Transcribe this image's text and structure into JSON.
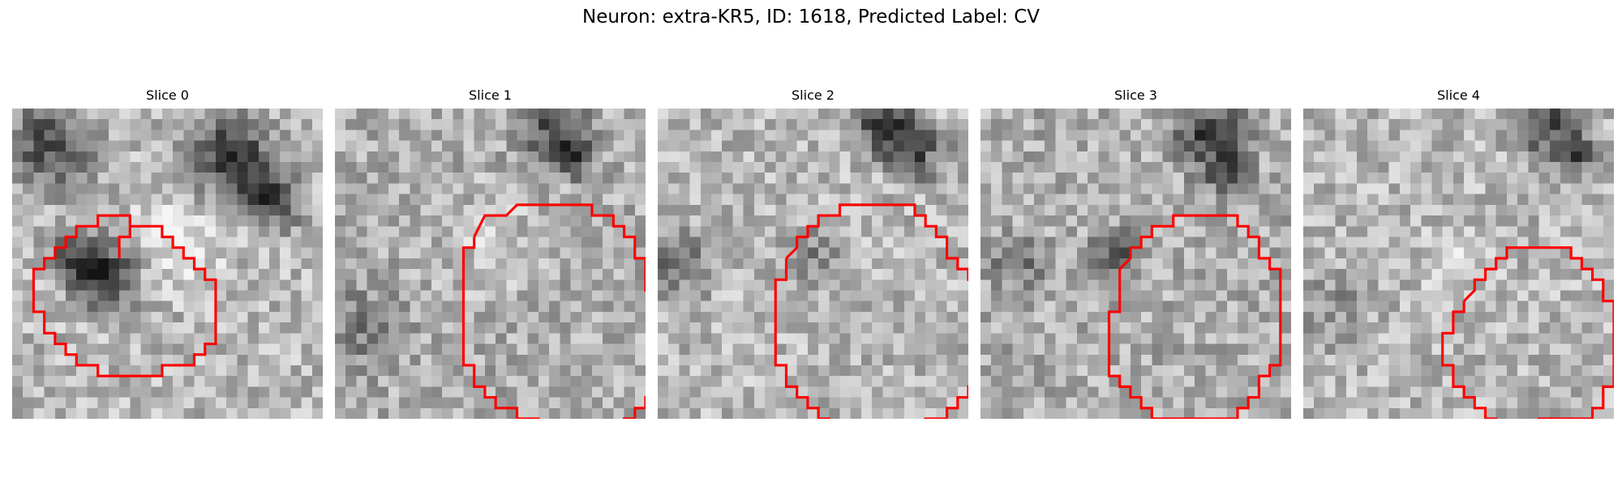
{
  "figure": {
    "title": "Neuron: extra-KR5, ID: 1618, Predicted Label: CV"
  },
  "slices": [
    {
      "title": "Slice 0",
      "contour": [
        [
          3,
          7
        ],
        [
          3,
          5
        ],
        [
          4,
          5
        ],
        [
          4,
          4
        ],
        [
          6,
          4
        ],
        [
          7,
          4
        ],
        [
          7,
          5
        ],
        [
          8,
          5
        ],
        [
          8,
          6
        ],
        [
          9,
          6
        ],
        [
          9,
          7
        ],
        [
          10,
          7
        ],
        [
          10,
          8
        ],
        [
          11,
          8
        ],
        [
          11,
          9
        ],
        [
          12,
          9
        ],
        [
          12,
          12
        ],
        [
          12,
          15
        ],
        [
          11,
          15
        ],
        [
          11,
          16
        ],
        [
          10,
          16
        ],
        [
          10,
          17
        ],
        [
          8,
          17
        ],
        [
          7,
          17
        ],
        [
          7,
          18
        ],
        [
          6,
          18
        ],
        [
          4,
          18
        ],
        [
          2,
          18
        ],
        [
          1,
          18
        ],
        [
          1,
          17
        ],
        [
          0,
          17
        ],
        [
          -1,
          17
        ],
        [
          -1,
          16
        ],
        [
          -2,
          16
        ],
        [
          -2,
          15
        ],
        [
          -3,
          15
        ],
        [
          -3,
          14
        ],
        [
          -4,
          14
        ],
        [
          -4,
          12
        ],
        [
          -5,
          12
        ],
        [
          -5,
          10
        ],
        [
          -5,
          8
        ],
        [
          -4,
          8
        ],
        [
          -4,
          7
        ],
        [
          -3,
          7
        ],
        [
          -3,
          6
        ],
        [
          -2,
          6
        ],
        [
          -2,
          5
        ],
        [
          -1,
          5
        ],
        [
          -1,
          4
        ],
        [
          0,
          4
        ],
        [
          1,
          4
        ],
        [
          1,
          3
        ],
        [
          3,
          3
        ],
        [
          4,
          3
        ],
        [
          4,
          4
        ]
      ],
      "tones": {
        "base": 0.72,
        "blobs": [
          {
            "x": 3,
            "y": 3,
            "r": 6,
            "a": -0.45
          },
          {
            "x": 8,
            "y": 15,
            "r": 5,
            "a": -0.55
          },
          {
            "x": 20,
            "y": 4,
            "r": 6,
            "a": -0.55
          },
          {
            "x": 24,
            "y": 8,
            "r": 4,
            "a": -0.5
          },
          {
            "x": 5,
            "y": 13,
            "r": 4,
            "a": -0.3
          },
          {
            "x": 15,
            "y": 12,
            "r": 7,
            "a": 0.18
          }
        ]
      }
    },
    {
      "title": "Slice 1",
      "contour": [
        [
          6,
          5
        ],
        [
          7,
          3
        ],
        [
          9,
          3
        ],
        [
          10,
          2
        ],
        [
          12,
          2
        ],
        [
          14,
          2
        ],
        [
          16,
          2
        ],
        [
          17,
          2
        ],
        [
          17,
          3
        ],
        [
          19,
          3
        ],
        [
          19,
          4
        ],
        [
          20,
          4
        ],
        [
          20,
          5
        ],
        [
          21,
          5
        ],
        [
          21,
          7
        ],
        [
          22,
          7
        ],
        [
          22,
          10
        ],
        [
          23,
          10
        ],
        [
          23,
          11
        ],
        [
          24,
          11
        ],
        [
          24,
          15
        ],
        [
          24,
          18
        ],
        [
          23,
          18
        ],
        [
          23,
          20
        ],
        [
          22,
          20
        ],
        [
          22,
          21
        ],
        [
          21,
          21
        ],
        [
          21,
          22
        ],
        [
          20,
          22
        ],
        [
          20,
          23
        ],
        [
          19,
          23
        ],
        [
          19,
          24
        ],
        [
          17,
          24
        ],
        [
          14,
          24
        ],
        [
          14,
          23
        ],
        [
          12,
          23
        ],
        [
          12,
          22
        ],
        [
          10,
          22
        ],
        [
          10,
          21
        ],
        [
          8,
          21
        ],
        [
          8,
          20
        ],
        [
          7,
          20
        ],
        [
          7,
          19
        ],
        [
          6,
          19
        ],
        [
          6,
          17
        ],
        [
          5,
          17
        ],
        [
          5,
          14
        ],
        [
          5,
          10
        ],
        [
          5,
          6
        ],
        [
          6,
          6
        ],
        [
          6,
          5
        ]
      ],
      "tones": {
        "base": 0.68,
        "blobs": [
          {
            "x": 20,
            "y": 1,
            "r": 5,
            "a": -0.45
          },
          {
            "x": 22,
            "y": 4,
            "r": 3,
            "a": -0.4
          },
          {
            "x": 2,
            "y": 20,
            "r": 6,
            "a": -0.2
          },
          {
            "x": 14,
            "y": 12,
            "r": 8,
            "a": 0.1
          }
        ]
      }
    },
    {
      "title": "Slice 2",
      "contour": [
        [
          5,
          7
        ],
        [
          6,
          6
        ],
        [
          6,
          5
        ],
        [
          7,
          5
        ],
        [
          7,
          4
        ],
        [
          8,
          4
        ],
        [
          8,
          3
        ],
        [
          10,
          3
        ],
        [
          10,
          2
        ],
        [
          12,
          2
        ],
        [
          14,
          2
        ],
        [
          16,
          2
        ],
        [
          17,
          2
        ],
        [
          17,
          3
        ],
        [
          18,
          3
        ],
        [
          18,
          4
        ],
        [
          19,
          4
        ],
        [
          19,
          5
        ],
        [
          20,
          5
        ],
        [
          20,
          7
        ],
        [
          21,
          7
        ],
        [
          21,
          8
        ],
        [
          22,
          8
        ],
        [
          22,
          9
        ],
        [
          23,
          9
        ],
        [
          23,
          12
        ],
        [
          23,
          17
        ],
        [
          23,
          19
        ],
        [
          22,
          19
        ],
        [
          22,
          20
        ],
        [
          21,
          20
        ],
        [
          21,
          21
        ],
        [
          20,
          21
        ],
        [
          20,
          22
        ],
        [
          18,
          22
        ],
        [
          18,
          23
        ],
        [
          17,
          23
        ],
        [
          16,
          23
        ],
        [
          14,
          23
        ],
        [
          12,
          23
        ],
        [
          10,
          23
        ],
        [
          9,
          23
        ],
        [
          9,
          22
        ],
        [
          8,
          22
        ],
        [
          8,
          21
        ],
        [
          7,
          21
        ],
        [
          7,
          20
        ],
        [
          6,
          20
        ],
        [
          6,
          19
        ],
        [
          5,
          19
        ],
        [
          5,
          17
        ],
        [
          4,
          17
        ],
        [
          4,
          12
        ],
        [
          4,
          9
        ],
        [
          5,
          9
        ],
        [
          5,
          8
        ],
        [
          5,
          7
        ]
      ],
      "tones": {
        "base": 0.72,
        "blobs": [
          {
            "x": 21,
            "y": 1,
            "r": 5,
            "a": -0.55
          },
          {
            "x": 24,
            "y": 4,
            "r": 4,
            "a": -0.35
          },
          {
            "x": 1,
            "y": 14,
            "r": 5,
            "a": -0.3
          },
          {
            "x": 14,
            "y": 13,
            "r": 4,
            "a": -0.18
          }
        ]
      }
    },
    {
      "title": "Slice 3",
      "contour": [
        [
          6,
          8
        ],
        [
          7,
          7
        ],
        [
          7,
          6
        ],
        [
          8,
          6
        ],
        [
          8,
          5
        ],
        [
          9,
          5
        ],
        [
          9,
          4
        ],
        [
          11,
          4
        ],
        [
          11,
          3
        ],
        [
          13,
          3
        ],
        [
          15,
          3
        ],
        [
          17,
          3
        ],
        [
          17,
          4
        ],
        [
          18,
          4
        ],
        [
          18,
          5
        ],
        [
          19,
          5
        ],
        [
          19,
          7
        ],
        [
          20,
          7
        ],
        [
          20,
          8
        ],
        [
          21,
          8
        ],
        [
          21,
          11
        ],
        [
          21,
          15
        ],
        [
          21,
          17
        ],
        [
          20,
          17
        ],
        [
          20,
          18
        ],
        [
          19,
          18
        ],
        [
          19,
          20
        ],
        [
          18,
          20
        ],
        [
          18,
          21
        ],
        [
          17,
          21
        ],
        [
          17,
          22
        ],
        [
          16,
          22
        ],
        [
          15,
          22
        ],
        [
          13,
          22
        ],
        [
          11,
          22
        ],
        [
          9,
          22
        ],
        [
          9,
          21
        ],
        [
          8,
          21
        ],
        [
          8,
          20
        ],
        [
          7,
          20
        ],
        [
          7,
          19
        ],
        [
          6,
          19
        ],
        [
          6,
          18
        ],
        [
          5,
          18
        ],
        [
          5,
          16
        ],
        [
          5,
          14
        ],
        [
          5,
          12
        ],
        [
          6,
          12
        ],
        [
          6,
          10
        ],
        [
          6,
          8
        ]
      ],
      "tones": {
        "base": 0.68,
        "blobs": [
          {
            "x": 21,
            "y": 2,
            "r": 5,
            "a": -0.5
          },
          {
            "x": 23,
            "y": 6,
            "r": 3,
            "a": -0.4
          },
          {
            "x": 12,
            "y": 13,
            "r": 3,
            "a": -0.4
          },
          {
            "x": 3,
            "y": 14,
            "r": 4,
            "a": -0.25
          }
        ]
      }
    },
    {
      "title": "Slice 4",
      "contour": [
        [
          8,
          11
        ],
        [
          9,
          10
        ],
        [
          9,
          9
        ],
        [
          10,
          9
        ],
        [
          10,
          8
        ],
        [
          11,
          8
        ],
        [
          11,
          7
        ],
        [
          12,
          7
        ],
        [
          12,
          6
        ],
        [
          14,
          6
        ],
        [
          16,
          6
        ],
        [
          18,
          6
        ],
        [
          18,
          7
        ],
        [
          19,
          7
        ],
        [
          19,
          8
        ],
        [
          20,
          8
        ],
        [
          20,
          9
        ],
        [
          21,
          9
        ],
        [
          21,
          11
        ],
        [
          22,
          11
        ],
        [
          22,
          14
        ],
        [
          22,
          17
        ],
        [
          22,
          19
        ],
        [
          21,
          19
        ],
        [
          21,
          21
        ],
        [
          20,
          21
        ],
        [
          20,
          22
        ],
        [
          18,
          22
        ],
        [
          17,
          22
        ],
        [
          16,
          22
        ],
        [
          15,
          22
        ],
        [
          15,
          23
        ],
        [
          14,
          23
        ],
        [
          12,
          23
        ],
        [
          11,
          23
        ],
        [
          11,
          22
        ],
        [
          10,
          22
        ],
        [
          10,
          21
        ],
        [
          9,
          21
        ],
        [
          9,
          20
        ],
        [
          8,
          20
        ],
        [
          8,
          19
        ],
        [
          7,
          19
        ],
        [
          7,
          17
        ],
        [
          6,
          17
        ],
        [
          6,
          16
        ],
        [
          6,
          14
        ],
        [
          7,
          14
        ],
        [
          7,
          12
        ],
        [
          8,
          12
        ],
        [
          8,
          11
        ]
      ],
      "tones": {
        "base": 0.72,
        "blobs": [
          {
            "x": 22,
            "y": 1,
            "r": 5,
            "a": -0.5
          },
          {
            "x": 25,
            "y": 4,
            "r": 3,
            "a": -0.4
          },
          {
            "x": 2,
            "y": 18,
            "r": 5,
            "a": -0.18
          },
          {
            "x": 14,
            "y": 14,
            "r": 5,
            "a": 0.12
          }
        ]
      }
    }
  ],
  "styles": {
    "contour_color": "#ff0000",
    "background_color": "#ffffff",
    "grid_cells": 29,
    "grid_origin_offset": 7
  }
}
